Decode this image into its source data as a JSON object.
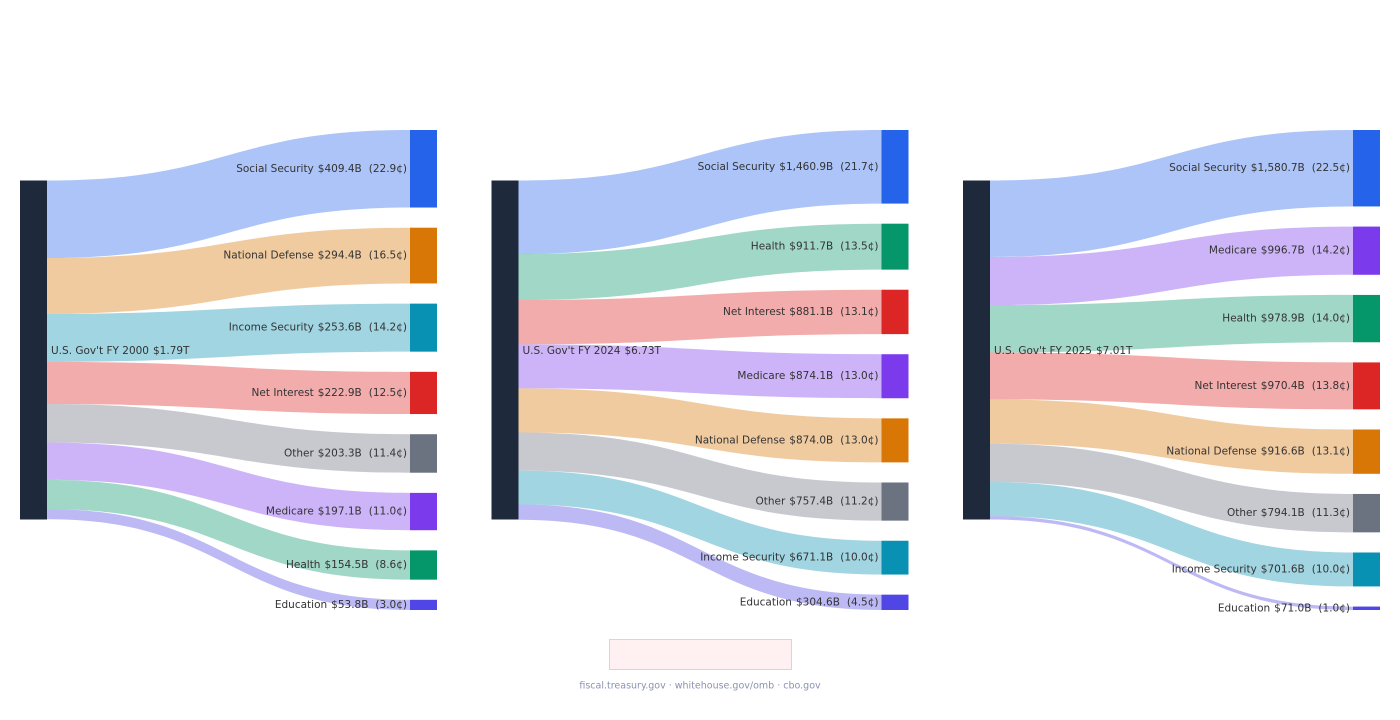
{
  "chart_data": [
    {
      "type": "sankey",
      "source": "U.S. Gov't FY 2000",
      "total": 1790,
      "total_label": "$1.79T",
      "categories": [
        "Social Security",
        "National Defense",
        "Income Security",
        "Net Interest",
        "Other",
        "Medicare",
        "Health",
        "Education"
      ],
      "values": [
        409.4,
        294.4,
        253.6,
        222.9,
        203.3,
        197.1,
        154.5,
        53.8
      ],
      "value_labels": [
        "$409.4B",
        "$294.4B",
        "$253.6B",
        "$222.9B",
        "$203.3B",
        "$197.1B",
        "$154.5B",
        "$53.8B"
      ],
      "shares": [
        22.9,
        16.5,
        14.2,
        12.5,
        11.4,
        11.0,
        8.6,
        3.0
      ],
      "share_labels": [
        "(22.9¢)",
        "(16.5¢)",
        "(14.2¢)",
        "(12.5¢)",
        "(11.4¢)",
        "(11.0¢)",
        "(8.6¢)",
        "(3.0¢)"
      ],
      "colors": [
        "#2563eb",
        "#d97706",
        "#0891b2",
        "#dc2626",
        "#6b7280",
        "#7c3aed",
        "#059669",
        "#4f46e5"
      ],
      "node_color": "#1e293b"
    },
    {
      "type": "sankey",
      "source": "U.S. Gov't FY 2024",
      "total": 6730,
      "total_label": "$6.73T",
      "categories": [
        "Social Security",
        "Health",
        "Net Interest",
        "Medicare",
        "National Defense",
        "Other",
        "Income Security",
        "Education"
      ],
      "values": [
        1460.9,
        911.7,
        881.1,
        874.1,
        874.0,
        757.4,
        671.1,
        304.6
      ],
      "value_labels": [
        "$1,460.9B",
        "$911.7B",
        "$881.1B",
        "$874.1B",
        "$874.0B",
        "$757.4B",
        "$671.1B",
        "$304.6B"
      ],
      "shares": [
        21.7,
        13.5,
        13.1,
        13.0,
        13.0,
        11.2,
        10.0,
        4.5
      ],
      "share_labels": [
        "(21.7¢)",
        "(13.5¢)",
        "(13.1¢)",
        "(13.0¢)",
        "(13.0¢)",
        "(11.2¢)",
        "(10.0¢)",
        "(4.5¢)"
      ],
      "colors": [
        "#2563eb",
        "#059669",
        "#dc2626",
        "#7c3aed",
        "#d97706",
        "#6b7280",
        "#0891b2",
        "#4f46e5"
      ],
      "node_color": "#1e293b"
    },
    {
      "type": "sankey",
      "source": "U.S. Gov't FY 2025",
      "total": 7010,
      "total_label": "$7.01T",
      "categories": [
        "Social Security",
        "Medicare",
        "Health",
        "Net Interest",
        "National Defense",
        "Other",
        "Income Security",
        "Education"
      ],
      "values": [
        1580.7,
        996.7,
        978.9,
        970.4,
        916.6,
        794.1,
        701.6,
        71.0
      ],
      "value_labels": [
        "$1,580.7B",
        "$996.7B",
        "$978.9B",
        "$970.4B",
        "$916.6B",
        "$794.1B",
        "$701.6B",
        "$71.0B"
      ],
      "shares": [
        22.5,
        14.2,
        14.0,
        13.8,
        13.1,
        11.3,
        10.0,
        1.0
      ],
      "share_labels": [
        "(22.5¢)",
        "(14.2¢)",
        "(14.0¢)",
        "(13.8¢)",
        "(13.1¢)",
        "(11.3¢)",
        "(10.0¢)",
        "(1.0¢)"
      ],
      "colors": [
        "#2563eb",
        "#7c3aed",
        "#059669",
        "#dc2626",
        "#d97706",
        "#6b7280",
        "#0891b2",
        "#4f46e5"
      ],
      "node_color": "#1e293b"
    }
  ],
  "footer": "fiscal.treasury.gov · whitehouse.gov/omb · cbo.gov"
}
